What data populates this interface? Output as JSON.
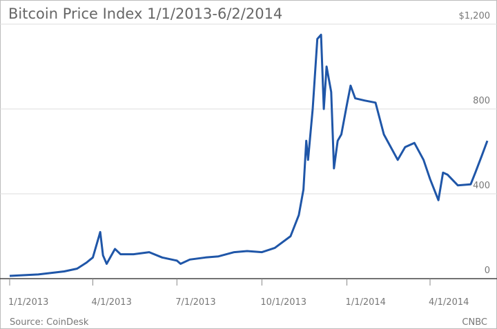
{
  "chart_data": {
    "type": "line",
    "title": "Bitcoin Price Index 1/1/2013-6/2/2014",
    "source": "Source: CoinDesk",
    "credit": "CNBC",
    "color": "#1f56a8",
    "x": [
      "1/1/2013",
      "2/1/2013",
      "3/1/2013",
      "3/15/2013",
      "3/25/2013",
      "4/1/2013",
      "4/9/2013",
      "4/12/2013",
      "4/16/2013",
      "4/25/2013",
      "5/1/2013",
      "5/15/2013",
      "6/1/2013",
      "6/15/2013",
      "7/1/2013",
      "7/5/2013",
      "7/15/2013",
      "8/1/2013",
      "8/15/2013",
      "9/1/2013",
      "9/15/2013",
      "10/1/2013",
      "10/15/2013",
      "11/1/2013",
      "11/10/2013",
      "11/15/2013",
      "11/18/2013",
      "11/20/2013",
      "11/25/2013",
      "11/30/2013",
      "12/4/2013",
      "12/7/2013",
      "12/10/2013",
      "12/15/2013",
      "12/18/2013",
      "12/22/2013",
      "12/26/2013",
      "1/1/2014",
      "1/5/2014",
      "1/10/2014",
      "1/20/2014",
      "2/1/2014",
      "2/10/2014",
      "2/25/2014",
      "3/5/2014",
      "3/15/2014",
      "3/25/2014",
      "4/1/2014",
      "4/10/2014",
      "4/15/2014",
      "4/20/2014",
      "5/1/2014",
      "5/15/2014",
      "5/20/2014",
      "5/27/2014",
      "6/2/2014"
    ],
    "values": [
      13,
      20,
      34,
      47,
      75,
      100,
      220,
      110,
      70,
      140,
      115,
      115,
      125,
      100,
      85,
      70,
      90,
      100,
      105,
      125,
      130,
      125,
      145,
      200,
      300,
      420,
      650,
      560,
      800,
      1130,
      1150,
      800,
      1000,
      880,
      520,
      650,
      680,
      820,
      910,
      850,
      840,
      830,
      680,
      560,
      620,
      640,
      560,
      470,
      370,
      500,
      490,
      440,
      445,
      500,
      580,
      650
    ],
    "xlim": [
      "1/1/2013",
      "6/2/2014"
    ],
    "xticks": [
      "1/1/2013",
      "4/1/2013",
      "7/1/2013",
      "10/1/2013",
      "1/1/2014",
      "4/1/2014"
    ],
    "ylim": [
      0,
      1200
    ],
    "yticks": [
      0,
      400,
      800,
      {
        "value": 1200,
        "label": "$1,200"
      }
    ],
    "grid": true
  }
}
